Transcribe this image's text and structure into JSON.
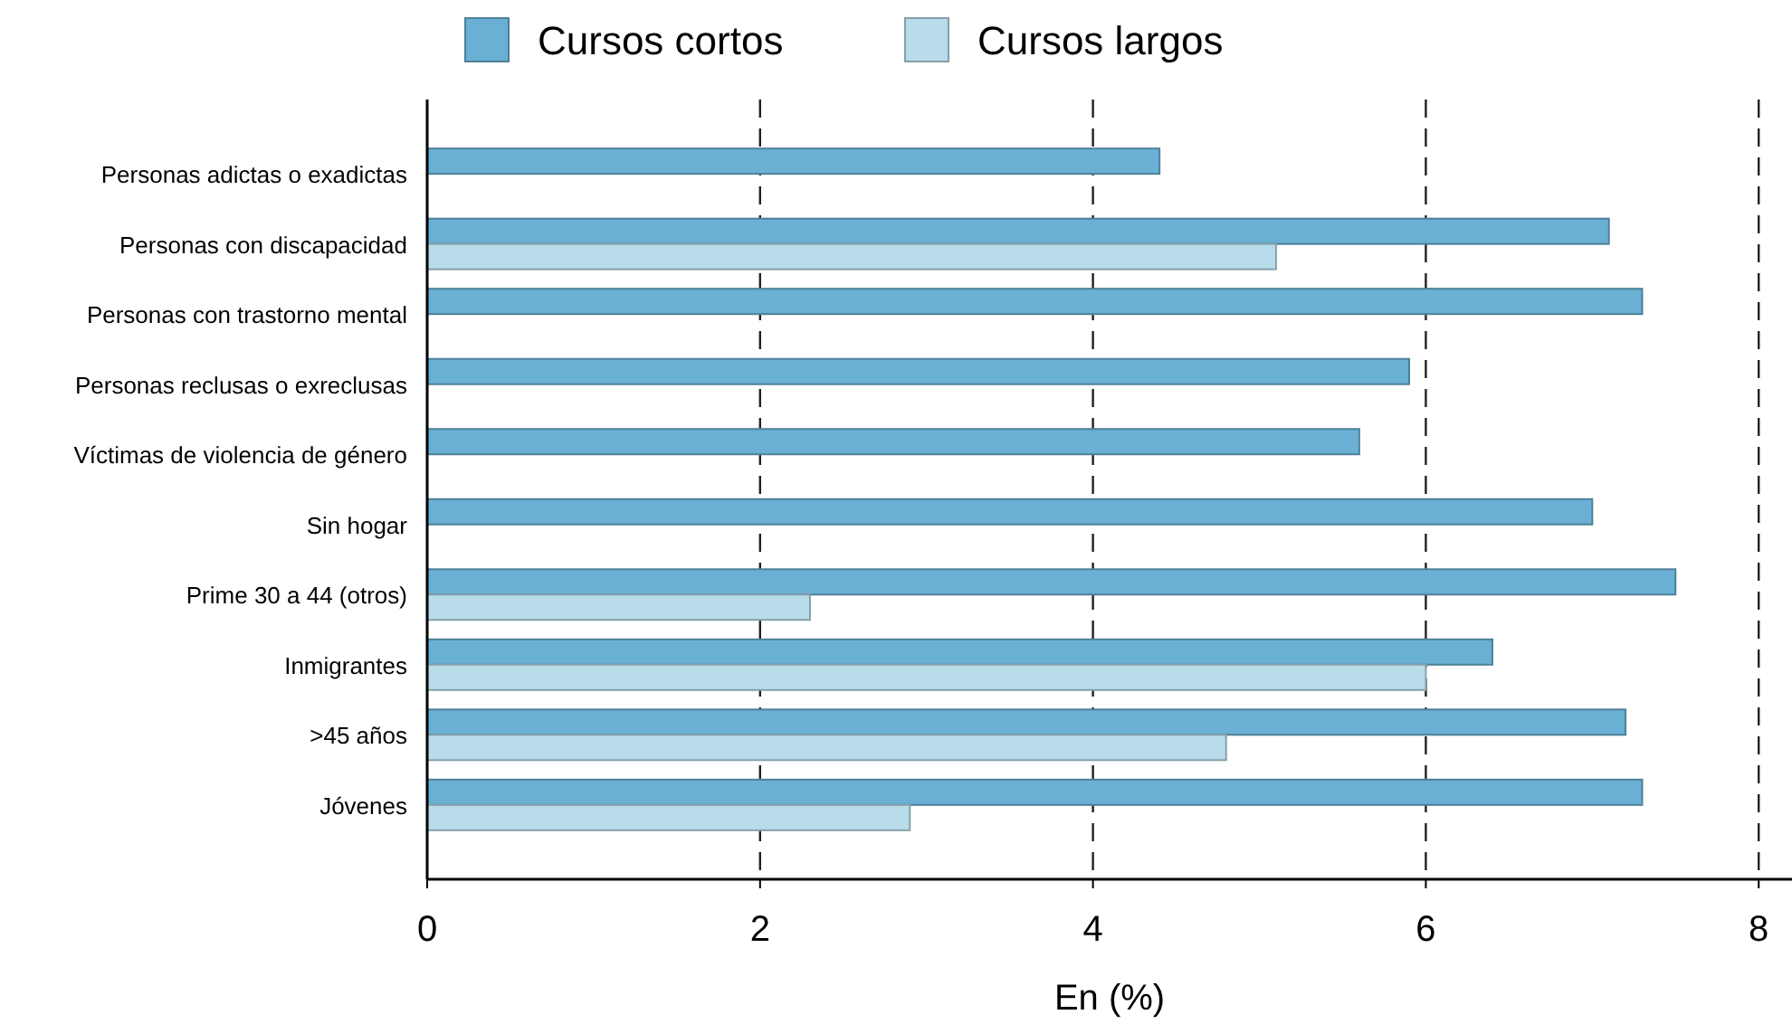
{
  "chart_data": {
    "type": "bar",
    "orientation": "horizontal",
    "xlabel": "En (%)",
    "categories": [
      "Personas adictas o exadictas",
      "Personas con discapacidad",
      "Personas con trastorno mental",
      "Personas reclusas o exreclusas",
      "Víctimas de violencia de género",
      "Sin hogar",
      "Prime 30 a 44 (otros)",
      "Inmigrantes",
      ">45 años",
      "Jóvenes"
    ],
    "series": [
      {
        "name": "Cursos cortos",
        "color": "#6ab0d4",
        "values": [
          4.4,
          7.1,
          7.3,
          5.9,
          5.6,
          7.0,
          7.5,
          6.4,
          7.2,
          7.3
        ]
      },
      {
        "name": "Cursos largos",
        "color": "#b9dcea",
        "values": [
          null,
          5.1,
          null,
          null,
          null,
          null,
          2.3,
          6.0,
          4.8,
          2.9
        ]
      }
    ],
    "xlim": [
      0,
      8.2
    ],
    "xticks": [
      0,
      2,
      4,
      6,
      8
    ],
    "grid": "x",
    "legend": "top"
  }
}
